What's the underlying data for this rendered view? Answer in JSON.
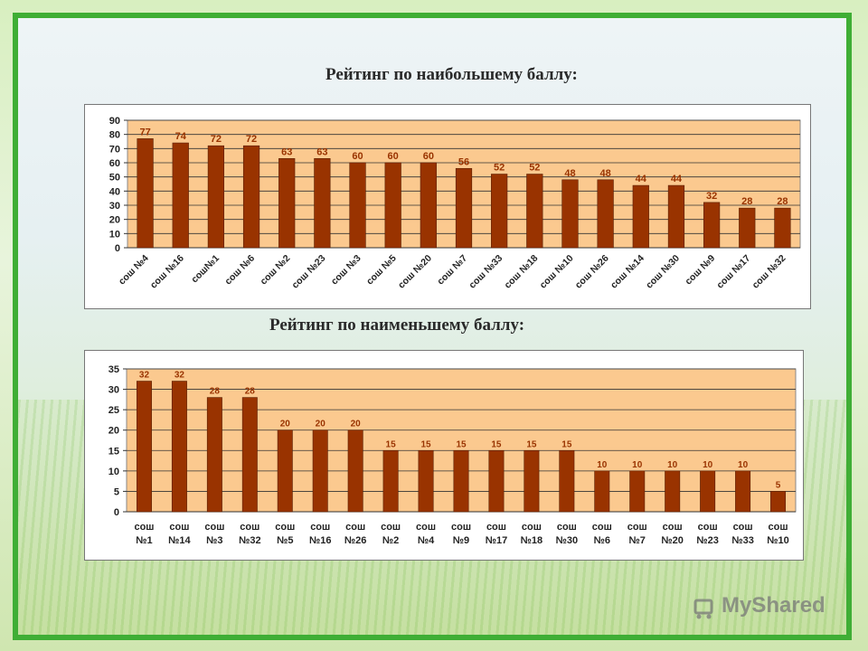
{
  "headings": {
    "top": "Рейтинг по наибольшему баллу:",
    "bottom": "Рейтинг по наименьшему  баллу:"
  },
  "watermark": "MyShared",
  "colors": {
    "bar": "#993300",
    "plot_bg": "#fbc98f",
    "label": "#993300"
  },
  "chart_data": [
    {
      "type": "bar",
      "title": "",
      "categories": [
        "сош №4",
        "сош №16",
        "сош№1",
        "сош №6",
        "сош №2",
        "сош №23",
        "сош №3",
        "сош №5",
        "сош №20",
        "сош №7",
        "сош №33",
        "сош №18",
        "сош №10",
        "сош №26",
        "сош №14",
        "сош №30",
        "сош №9",
        "сош №17",
        "сош №32"
      ],
      "values": [
        77,
        74,
        72,
        72,
        63,
        63,
        60,
        60,
        60,
        56,
        52,
        52,
        48,
        48,
        44,
        44,
        32,
        28,
        28
      ],
      "ylim": [
        0,
        90
      ],
      "yticks": [
        0,
        10,
        20,
        30,
        40,
        50,
        60,
        70,
        80,
        90
      ],
      "grid": true
    },
    {
      "type": "bar",
      "title": "",
      "categories": [
        [
          "сош",
          "№1"
        ],
        [
          "сош",
          "№14"
        ],
        [
          "сош",
          "№3"
        ],
        [
          "сош",
          "№32"
        ],
        [
          "сош",
          "№5"
        ],
        [
          "сош",
          "№16"
        ],
        [
          "сош",
          "№26"
        ],
        [
          "сош",
          "№2"
        ],
        [
          "сош",
          "№4"
        ],
        [
          "сош",
          "№9"
        ],
        [
          "сош",
          "№17"
        ],
        [
          "сош",
          "№18"
        ],
        [
          "сош",
          "№30"
        ],
        [
          "сош",
          "№6"
        ],
        [
          "сош",
          "№7"
        ],
        [
          "сош",
          "№20"
        ],
        [
          "сош",
          "№23"
        ],
        [
          "сош",
          "№33"
        ],
        [
          "сош",
          "№10"
        ]
      ],
      "values": [
        32,
        32,
        28,
        28,
        20,
        20,
        20,
        15,
        15,
        15,
        15,
        15,
        15,
        10,
        10,
        10,
        10,
        10,
        5
      ],
      "ylim": [
        0,
        35
      ],
      "yticks": [
        0,
        5,
        10,
        15,
        20,
        25,
        30,
        35
      ],
      "grid": true
    }
  ]
}
